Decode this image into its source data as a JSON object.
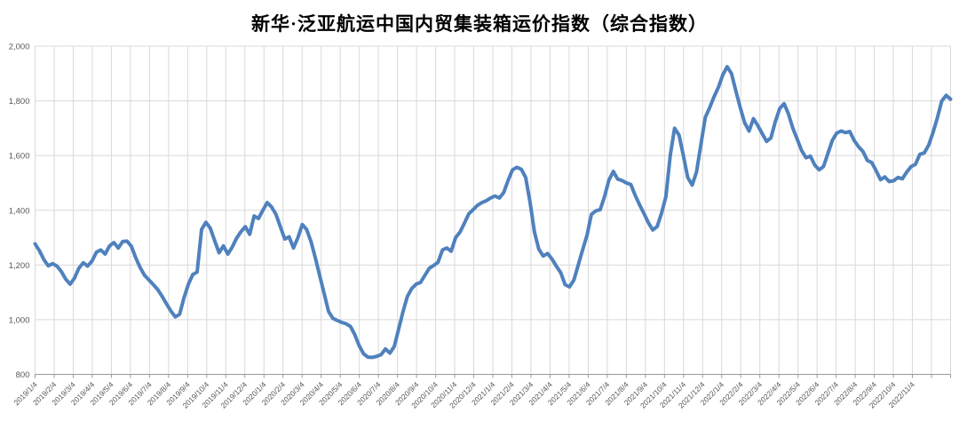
{
  "chart_data": {
    "type": "line",
    "title": "新华·泛亚航运中国内贸集装箱运价指数（综合指数）",
    "legend_position": "none",
    "grid": true,
    "background": "#FFFFFF",
    "ylim": [
      800,
      2000
    ],
    "y_ticks": [
      {
        "value": 800,
        "label": "800"
      },
      {
        "value": 1000,
        "label": "1,000"
      },
      {
        "value": 1200,
        "label": "1,200"
      },
      {
        "value": 1400,
        "label": "1,400"
      },
      {
        "value": 1600,
        "label": "1,600"
      },
      {
        "value": 1800,
        "label": "1,800"
      },
      {
        "value": 2000,
        "label": "2,000"
      }
    ],
    "x_axis": {
      "tick_interval": "1 month",
      "months_total": 48,
      "tick_labels": [
        "2019/1/4",
        "2019/2/4",
        "2019/3/4",
        "2019/4/4",
        "2019/5/4",
        "2019/6/4",
        "2019/7/4",
        "2019/8/4",
        "2019/9/4",
        "2019/10/4",
        "2019/11/4",
        "2019/12/4",
        "2020/1/4",
        "2020/2/4",
        "2020/3/4",
        "2020/4/4",
        "2020/5/4",
        "2020/6/4",
        "2020/7/4",
        "2020/8/4",
        "2020/9/4",
        "2020/10/4",
        "2020/11/4",
        "2020/12/4",
        "2021/1/4",
        "2021/2/4",
        "2021/3/4",
        "2021/4/4",
        "2021/5/4",
        "2021/6/4",
        "2021/7/4",
        "2021/8/4",
        "2021/9/4",
        "2021/10/4",
        "2021/11/4",
        "2021/12/4",
        "2022/1/4",
        "2022/2/4",
        "2022/3/4",
        "2022/4/4",
        "2022/5/4",
        "2022/6/4",
        "2022/7/4",
        "2022/8/4",
        "2022/9/4",
        "2022/10/4",
        "2022/11/4"
      ]
    },
    "series": [
      {
        "name": "综合指数",
        "color": "#4F81BD",
        "stroke_width": 4,
        "sampling": "weekly, spanning months 0 to 48 of the x axis",
        "values": [
          1277,
          1252,
          1220,
          1197,
          1205,
          1196,
          1176,
          1148,
          1130,
          1152,
          1188,
          1208,
          1196,
          1214,
          1247,
          1255,
          1240,
          1270,
          1282,
          1262,
          1286,
          1287,
          1268,
          1225,
          1190,
          1162,
          1145,
          1128,
          1110,
          1085,
          1058,
          1032,
          1010,
          1020,
          1080,
          1130,
          1165,
          1174,
          1330,
          1356,
          1335,
          1288,
          1245,
          1270,
          1240,
          1265,
          1298,
          1322,
          1340,
          1312,
          1379,
          1370,
          1400,
          1428,
          1412,
          1385,
          1340,
          1295,
          1303,
          1262,
          1300,
          1348,
          1330,
          1285,
          1225,
          1160,
          1095,
          1030,
          1005,
          997,
          990,
          985,
          975,
          945,
          905,
          875,
          863,
          862,
          866,
          872,
          893,
          878,
          902,
          965,
          1030,
          1085,
          1114,
          1130,
          1136,
          1162,
          1188,
          1198,
          1210,
          1255,
          1262,
          1250,
          1300,
          1320,
          1352,
          1387,
          1402,
          1418,
          1428,
          1435,
          1445,
          1452,
          1445,
          1465,
          1510,
          1548,
          1557,
          1550,
          1520,
          1430,
          1320,
          1258,
          1233,
          1242,
          1222,
          1196,
          1172,
          1128,
          1120,
          1145,
          1200,
          1255,
          1309,
          1385,
          1398,
          1402,
          1450,
          1510,
          1542,
          1514,
          1509,
          1500,
          1494,
          1455,
          1420,
          1388,
          1355,
          1328,
          1340,
          1388,
          1450,
          1600,
          1700,
          1675,
          1600,
          1520,
          1492,
          1540,
          1640,
          1740,
          1775,
          1815,
          1850,
          1895,
          1925,
          1900,
          1835,
          1775,
          1720,
          1690,
          1735,
          1710,
          1680,
          1652,
          1665,
          1725,
          1772,
          1790,
          1752,
          1700,
          1660,
          1618,
          1592,
          1598,
          1565,
          1548,
          1560,
          1608,
          1655,
          1682,
          1690,
          1684,
          1688,
          1655,
          1632,
          1615,
          1582,
          1575,
          1545,
          1512,
          1522,
          1505,
          1508,
          1520,
          1515,
          1540,
          1560,
          1568,
          1605,
          1610,
          1638,
          1685,
          1739,
          1800,
          1820,
          1806
        ]
      }
    ]
  },
  "colors": {
    "gridline": "#D9D9D9",
    "axis_line": "#9A9A9A",
    "tick_mark": "#9A9A9A",
    "tick_text": "#595959",
    "title_text": "#000000",
    "line": "#4F81BD",
    "background": "#FFFFFF"
  }
}
